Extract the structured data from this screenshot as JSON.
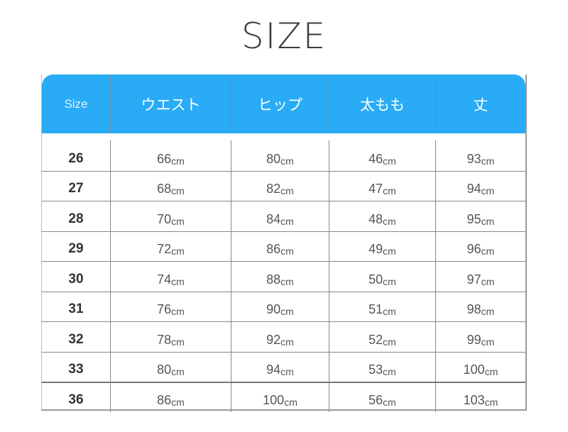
{
  "title": "SIZE",
  "header_color": "#29abf6",
  "columns": [
    "Size",
    "ウエスト",
    "ヒップ",
    "太もも",
    "丈"
  ],
  "unit": "cm",
  "rows": [
    [
      "26",
      "66",
      "80",
      "46",
      "93"
    ],
    [
      "27",
      "68",
      "82",
      "47",
      "94"
    ],
    [
      "28",
      "70",
      "84",
      "48",
      "95"
    ],
    [
      "29",
      "72",
      "86",
      "49",
      "96"
    ],
    [
      "30",
      "74",
      "88",
      "50",
      "97"
    ],
    [
      "31",
      "76",
      "90",
      "51",
      "98"
    ],
    [
      "32",
      "78",
      "92",
      "52",
      "99"
    ],
    [
      "33",
      "80",
      "94",
      "53",
      "100"
    ],
    [
      "36",
      "86",
      "100",
      "56",
      "103"
    ]
  ]
}
